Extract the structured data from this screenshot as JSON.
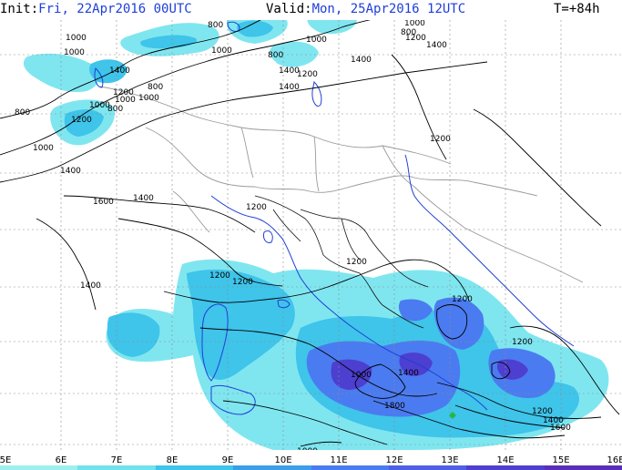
{
  "header": {
    "init_label": "Init:",
    "init_value": "Fri, 22Apr2016 00UTC",
    "valid_label": "Valid:",
    "valid_value": "Mon, 25Apr2016 12UTC",
    "lead_time": "T=+84h"
  },
  "longitude_ticks": [
    "5E",
    "6E",
    "7E",
    "8E",
    "9E",
    "10E",
    "11E",
    "12E",
    "13E",
    "14E",
    "15E",
    "16E"
  ],
  "contour_labels": [
    "800",
    "1000",
    "1000",
    "800",
    "1000",
    "800",
    "1000",
    "1200",
    "1400",
    "1200",
    "1400",
    "1200",
    "1400",
    "1000",
    "1200",
    "800",
    "1000",
    "800",
    "1000",
    "800",
    "1000",
    "1200",
    "1400",
    "1400",
    "1600",
    "1400",
    "1200",
    "1200",
    "1200",
    "1200",
    "1000",
    "1400",
    "1800",
    "1200",
    "1400",
    "1600",
    "1200",
    "1200",
    "1000",
    "1400",
    "1400",
    "1000"
  ],
  "colors": {
    "light_cyan": "#7fe6f0",
    "cyan": "#3fc4ea",
    "blue": "#4b7bf0",
    "dark_blue": "#4d3fd0",
    "contour": "#000000",
    "border": "#999999",
    "coast": "#1f3fd8",
    "grid": "#8c8c8c",
    "marker": "#21b84a"
  },
  "colorbar_colors": [
    "#9ef0f0",
    "#6fe2ec",
    "#3fc4ea",
    "#3b9ee8",
    "#4b7bf0",
    "#4d5fe6",
    "#4d3fd0",
    "#5a2fb8"
  ]
}
